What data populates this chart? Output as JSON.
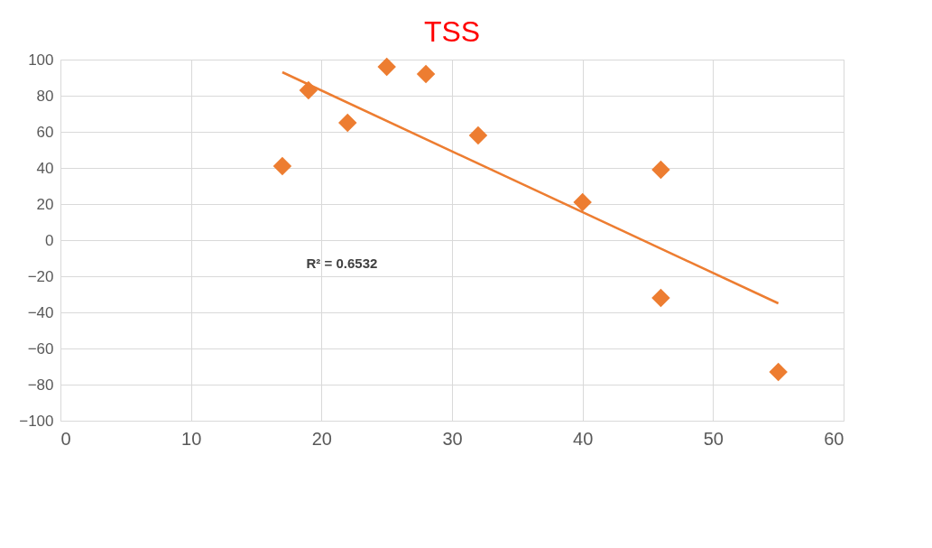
{
  "chart_data": {
    "type": "scatter",
    "title": "TSS",
    "series": [
      {
        "color": "#ed7d31",
        "marker": "diamond",
        "x": [
          17,
          19,
          22,
          25,
          28,
          32,
          40,
          46,
          46,
          55
        ],
        "values": [
          41,
          83,
          65,
          96,
          92,
          58,
          21,
          39,
          -32,
          -73
        ]
      },
      {
        "type": "line",
        "color": "#ed7d31",
        "x": [
          17,
          55
        ],
        "values": [
          93,
          -35
        ]
      }
    ],
    "xlim": [
      0,
      60
    ],
    "xticks": [
      0,
      10,
      20,
      30,
      40,
      50,
      60
    ],
    "ylim": [
      -100,
      100
    ],
    "yticks": [
      -100,
      -80,
      -60,
      -40,
      -20,
      0,
      20,
      40,
      60,
      80,
      100
    ],
    "grid": true,
    "legend": false,
    "annotations": [
      "R² = 0.6532"
    ]
  }
}
